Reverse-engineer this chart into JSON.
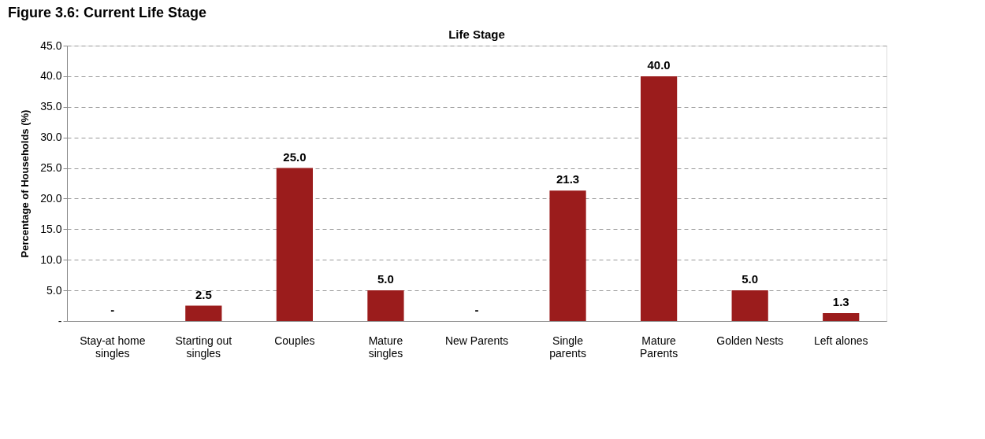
{
  "chart_data": {
    "type": "bar",
    "title": "Life Stage",
    "ylabel": "Percentage of Households (%)",
    "annotations": [
      "Figure 3.6: Current Life Stage"
    ],
    "categories": [
      "Stay-at home\nsingles",
      "Starting out\nsingles",
      "Couples",
      "Mature\nsingles",
      "New Parents",
      "Single\nparents",
      "Mature\nParents",
      "Golden Nests",
      "Left alones"
    ],
    "values": [
      0,
      2.5,
      25.0,
      5.0,
      0,
      21.3,
      40.0,
      5.0,
      1.3
    ],
    "value_labels": [
      "-",
      "2.5",
      "25.0",
      "5.0",
      "-",
      "21.3",
      "40.0",
      "5.0",
      "1.3"
    ],
    "color": "#9b1c1c",
    "ylim": [
      0,
      45
    ],
    "yticks": [
      {
        "value": 0,
        "label": "-"
      },
      {
        "value": 5,
        "label": "5.0"
      },
      {
        "value": 10,
        "label": "10.0"
      },
      {
        "value": 15,
        "label": "15.0"
      },
      {
        "value": 20,
        "label": "20.0"
      },
      {
        "value": 25,
        "label": "25.0"
      },
      {
        "value": 30,
        "label": "30.0"
      },
      {
        "value": 35,
        "label": "35.0"
      },
      {
        "value": 40,
        "label": "40.0"
      },
      {
        "value": 45,
        "label": "45.0"
      }
    ],
    "grid": "y"
  }
}
